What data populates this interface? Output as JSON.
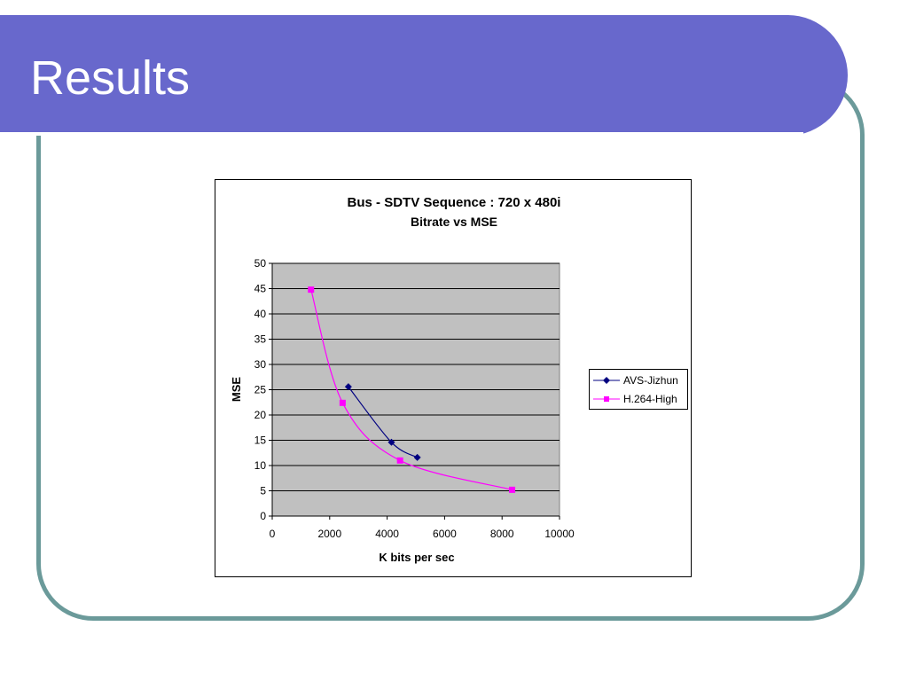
{
  "slide": {
    "title": "Results"
  },
  "chart_data": {
    "type": "line",
    "title": "Bus - SDTV Sequence : 720 x 480i",
    "subtitle": "Bitrate vs MSE",
    "xlabel": "K bits per sec",
    "ylabel": "MSE",
    "xlim": [
      0,
      10000
    ],
    "ylim": [
      0,
      50
    ],
    "x_ticks": [
      0,
      2000,
      4000,
      6000,
      8000,
      10000
    ],
    "y_ticks": [
      0,
      5,
      10,
      15,
      20,
      25,
      30,
      35,
      40,
      45,
      50
    ],
    "grid": "horizontal",
    "legend_position": "right",
    "plot_background": "#c0c0c0",
    "series": [
      {
        "name": "AVS-Jizhun",
        "color": "#000080",
        "marker": "diamond",
        "points": [
          [
            2650,
            25.6
          ],
          [
            4150,
            14.6
          ],
          [
            5050,
            11.6
          ]
        ]
      },
      {
        "name": "H.264-High",
        "color": "#ff00ff",
        "marker": "square",
        "points": [
          [
            1350,
            44.8
          ],
          [
            2450,
            22.4
          ],
          [
            4450,
            11.0
          ],
          [
            8350,
            5.2
          ]
        ]
      }
    ]
  },
  "colors": {
    "title_bar": "#6868cc",
    "frame": "#6b9a9a"
  }
}
